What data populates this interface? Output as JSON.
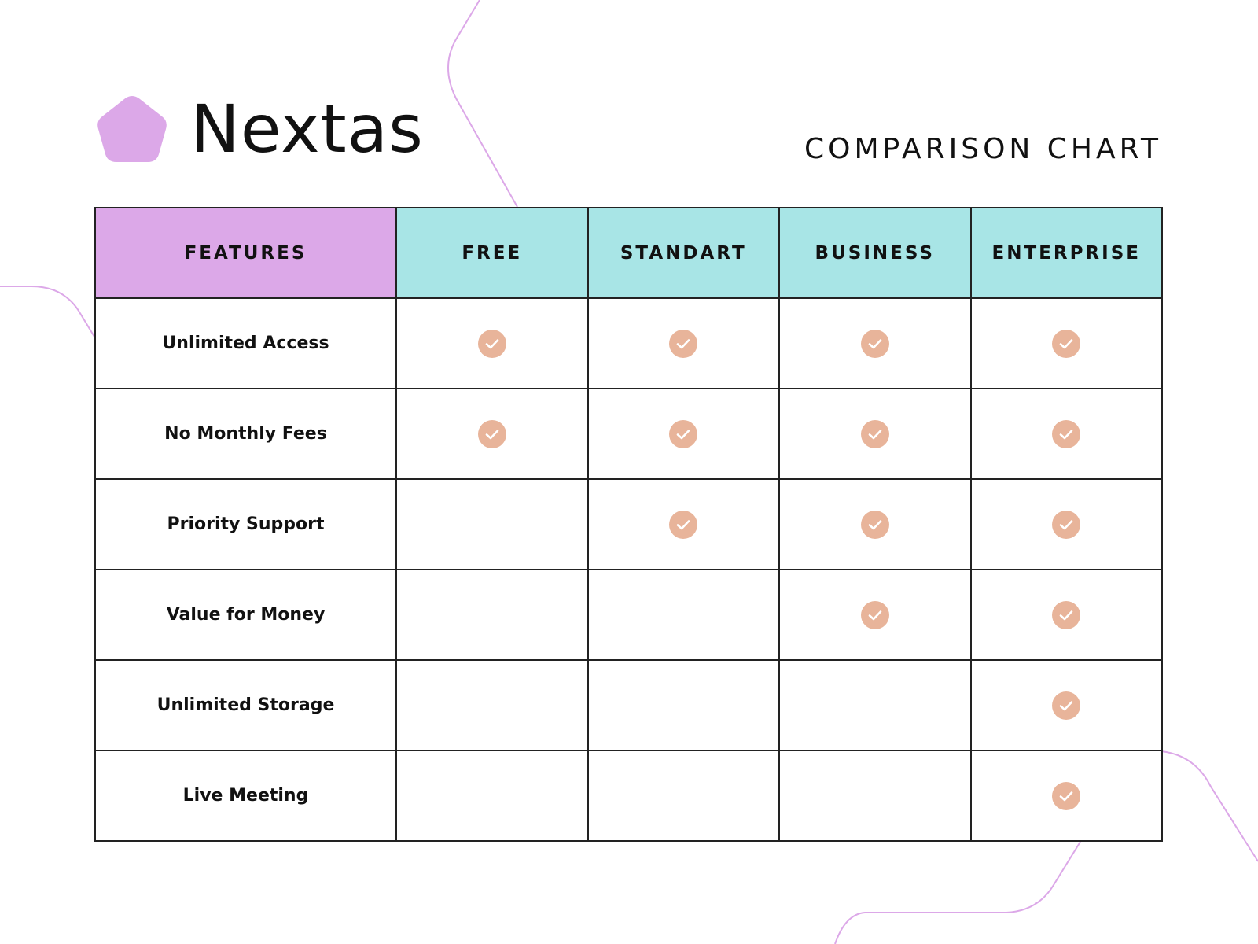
{
  "brand": {
    "name": "Nextas",
    "logo_color": "#dca8e8"
  },
  "document": {
    "title": "COMPARISON CHART"
  },
  "colors": {
    "features_header_bg": "#dca8e8",
    "plan_header_bg": "#a8e5e6",
    "check_color": "#e8b49a",
    "decor_line": "#dca8e8"
  },
  "table": {
    "feature_header": "FEATURES",
    "plans": [
      "FREE",
      "STANDART",
      "BUSINESS",
      "ENTERPRISE"
    ],
    "rows": [
      {
        "feature": "Unlimited Access",
        "included": [
          true,
          true,
          true,
          true
        ]
      },
      {
        "feature": "No Monthly Fees",
        "included": [
          true,
          true,
          true,
          true
        ]
      },
      {
        "feature": "Priority Support",
        "included": [
          false,
          true,
          true,
          true
        ]
      },
      {
        "feature": "Value for Money",
        "included": [
          false,
          false,
          true,
          true
        ]
      },
      {
        "feature": "Unlimited Storage",
        "included": [
          false,
          false,
          false,
          true
        ]
      },
      {
        "feature": "Live Meeting",
        "included": [
          false,
          false,
          false,
          true
        ]
      }
    ]
  },
  "icons": {
    "logo": "pentagon-icon",
    "check": "check-circle-icon"
  }
}
